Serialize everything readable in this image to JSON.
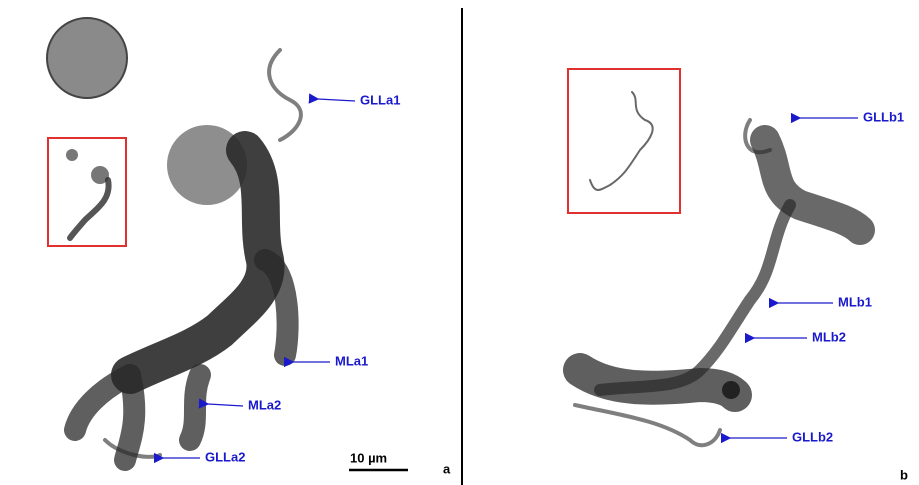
{
  "panels": [
    {
      "letter": "a",
      "labels": [
        "GLLa1",
        "MLa1",
        "MLa2",
        "GLLa2"
      ],
      "scale_bar": "10 µm"
    },
    {
      "letter": "b",
      "labels": [
        "GLLb1",
        "MLb1",
        "MLb2",
        "GLLb2"
      ]
    }
  ]
}
